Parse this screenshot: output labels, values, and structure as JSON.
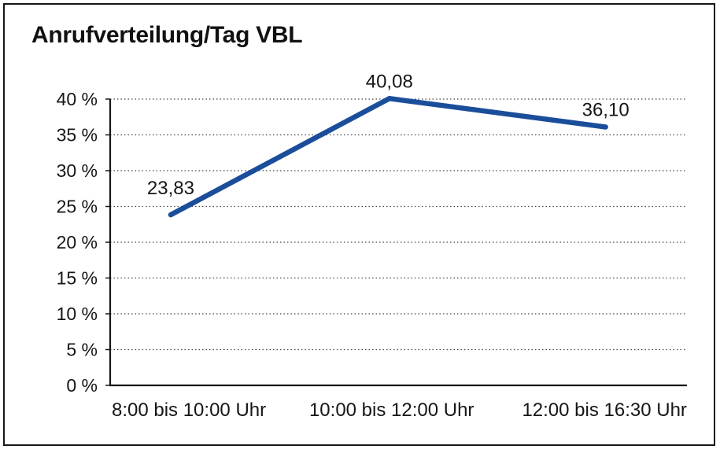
{
  "frame": {
    "border_color": "#161616",
    "background": "#ffffff"
  },
  "chart_data": {
    "type": "line",
    "title": "Anrufverteilung/Tag VBL",
    "categories": [
      "8:00 bis 10:00 Uhr",
      "10:00 bis 12:00 Uhr",
      "12:00 bis 16:30 Uhr"
    ],
    "series": [
      {
        "values": [
          23.83,
          40.08,
          36.1
        ],
        "point_labels": [
          "23,83",
          "40,08",
          "36,10"
        ],
        "color": "#1b4e9a"
      }
    ],
    "xlabel": "",
    "ylabel": "",
    "ylim": [
      0,
      40
    ],
    "yticks": {
      "values": [
        0,
        5,
        10,
        15,
        20,
        25,
        30,
        35,
        40
      ],
      "labels": [
        "0 %",
        "5 %",
        "10 %",
        "15 %",
        "20 %",
        "25 %",
        "30 %",
        "35 %",
        "40 %"
      ]
    },
    "grid": "horizontal-dotted",
    "legend": "none"
  }
}
